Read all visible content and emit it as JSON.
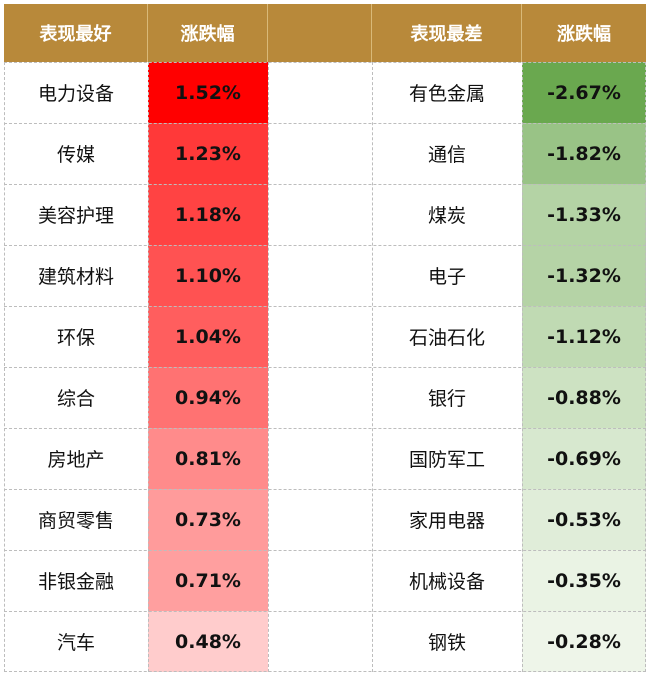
{
  "chart_data": {
    "type": "table",
    "headers": [
      "表现最好",
      "涨跌幅",
      "",
      "表现最差",
      "涨跌幅"
    ],
    "best": {
      "categories": [
        "电力设备",
        "传媒",
        "美容护理",
        "建筑材料",
        "环保",
        "综合",
        "房地产",
        "商贸零售",
        "非银金融",
        "汽车"
      ],
      "labels": [
        "1.52%",
        "1.23%",
        "1.18%",
        "1.10%",
        "1.04%",
        "0.94%",
        "0.81%",
        "0.73%",
        "0.71%",
        "0.48%"
      ],
      "values": [
        1.52,
        1.23,
        1.18,
        1.1,
        1.04,
        0.94,
        0.81,
        0.73,
        0.71,
        0.48
      ]
    },
    "worst": {
      "categories": [
        "有色金属",
        "通信",
        "煤炭",
        "电子",
        "石油石化",
        "银行",
        "国防军工",
        "家用电器",
        "机械设备",
        "钢铁"
      ],
      "labels": [
        "-2.67%",
        "-1.82%",
        "-1.33%",
        "-1.32%",
        "-1.12%",
        "-0.88%",
        "-0.69%",
        "-0.53%",
        "-0.35%",
        "-0.28%"
      ],
      "values": [
        -2.67,
        -1.82,
        -1.33,
        -1.32,
        -1.12,
        -0.88,
        -0.69,
        -0.53,
        -0.35,
        -0.28
      ]
    },
    "colors": {
      "header_bg": "#b8893a",
      "header_text": "#ffffff",
      "positive_max": "#ff0000",
      "positive_min": "#ffcccc",
      "negative_max": "#6aa84f",
      "negative_min": "#eef5e9"
    }
  }
}
